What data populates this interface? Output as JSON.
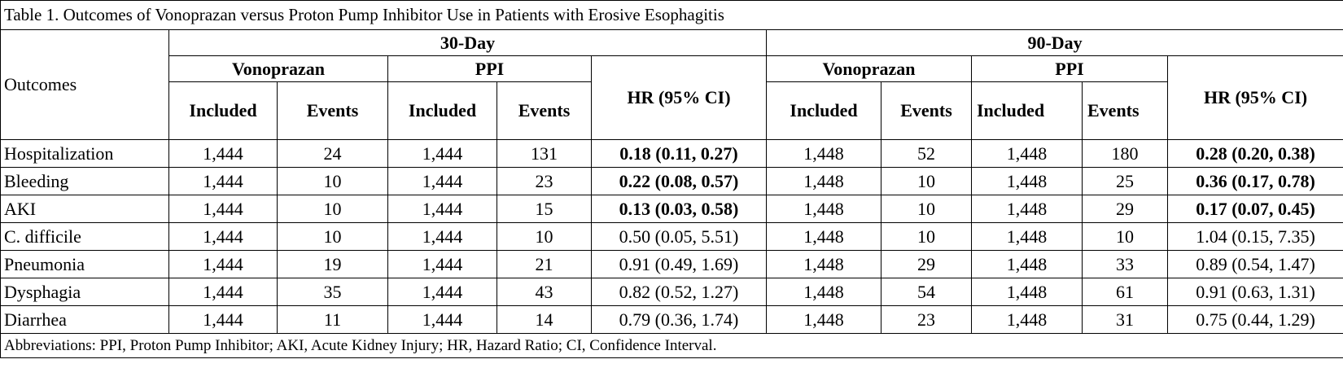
{
  "table": {
    "title": "Table 1. Outcomes of Vonoprazan versus Proton Pump Inhibitor Use in Patients with Erosive Esophagitis",
    "row_header": "Outcomes",
    "periods": [
      {
        "label": "30-Day",
        "arms": [
          {
            "label": "Vonoprazan",
            "columns": [
              "Included",
              "Events"
            ]
          },
          {
            "label": "PPI",
            "columns": [
              "Included",
              "Events"
            ]
          }
        ],
        "hr": "HR (95% CI)"
      },
      {
        "label": "90-Day",
        "arms": [
          {
            "label": "Vonoprazan",
            "columns": [
              "Included",
              "Events"
            ]
          },
          {
            "label": "PPI",
            "columns": [
              "Included",
              "Events"
            ]
          }
        ],
        "hr": "HR (95% CI)"
      }
    ],
    "rows": [
      {
        "outcome": "Hospitalization",
        "cells": [
          "1,444",
          "24",
          "1,444",
          "131",
          "0.18 (0.11, 0.27)",
          "1,448",
          "52",
          "1,448",
          "180",
          "0.28 (0.20, 0.38)"
        ],
        "bold_hr": true
      },
      {
        "outcome": "Bleeding",
        "cells": [
          "1,444",
          "10",
          "1,444",
          "23",
          "0.22 (0.08, 0.57)",
          "1,448",
          "10",
          "1,448",
          "25",
          "0.36 (0.17, 0.78)"
        ],
        "bold_hr": true
      },
      {
        "outcome": "AKI",
        "cells": [
          "1,444",
          "10",
          "1,444",
          "15",
          "0.13 (0.03, 0.58)",
          "1,448",
          "10",
          "1,448",
          "29",
          "0.17 (0.07, 0.45)"
        ],
        "bold_hr": true
      },
      {
        "outcome": "C. difficile",
        "cells": [
          "1,444",
          "10",
          "1,444",
          "10",
          "0.50 (0.05, 5.51)",
          "1,448",
          "10",
          "1,448",
          "10",
          "1.04 (0.15, 7.35)"
        ],
        "bold_hr": false
      },
      {
        "outcome": "Pneumonia",
        "cells": [
          "1,444",
          "19",
          "1,444",
          "21",
          "0.91 (0.49, 1.69)",
          "1,448",
          "29",
          "1,448",
          "33",
          "0.89 (0.54, 1.47)"
        ],
        "bold_hr": false
      },
      {
        "outcome": "Dysphagia",
        "cells": [
          "1,444",
          "35",
          "1,444",
          "43",
          "0.82 (0.52, 1.27)",
          "1,448",
          "54",
          "1,448",
          "61",
          "0.91 (0.63, 1.31)"
        ],
        "bold_hr": false
      },
      {
        "outcome": "Diarrhea",
        "cells": [
          "1,444",
          "11",
          "1,444",
          "14",
          "0.79 (0.36, 1.74)",
          "1,448",
          "23",
          "1,448",
          "31",
          "0.75 (0.44, 1.29)"
        ],
        "bold_hr": false
      }
    ],
    "footnote": "Abbreviations: PPI, Proton Pump Inhibitor; AKI, Acute Kidney Injury; HR, Hazard Ratio; CI, Confidence Interval."
  }
}
